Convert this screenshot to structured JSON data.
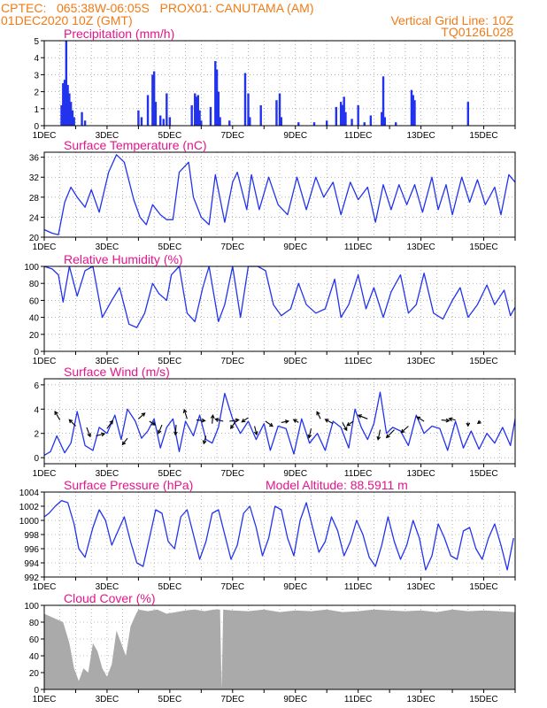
{
  "header": {
    "line1": "CPTEC:   065:38W-06:05S   PROX01: CANUTAMA (AM)",
    "line2": "01DEC2020 10Z (GMT)",
    "grid_note": "Vertical Grid Line: 10Z",
    "code": "TQ0126L028"
  },
  "colors": {
    "header": "#f07b16",
    "title": "#e6148c",
    "series": "#2233ee",
    "cloud": "#aaaaaa",
    "arrow": "#000000"
  },
  "chart_data": [
    {
      "type": "bar",
      "title": "Precipitation (mm/h)",
      "x_ticks": [
        "1DEC",
        "3DEC",
        "5DEC",
        "7DEC",
        "9DEC",
        "11DEC",
        "13DEC",
        "15DEC"
      ],
      "x_range_days": [
        1,
        16
      ],
      "ylim": [
        0,
        5
      ],
      "y_ticks": [
        0,
        1,
        2,
        3,
        4,
        5
      ],
      "grid": "dashed",
      "bars": [
        [
          1.55,
          1.2
        ],
        [
          1.6,
          2.5
        ],
        [
          1.65,
          2.7
        ],
        [
          1.7,
          5.0
        ],
        [
          1.75,
          2.4
        ],
        [
          1.8,
          1.9
        ],
        [
          1.85,
          1.4
        ],
        [
          1.9,
          0.9
        ],
        [
          1.95,
          0.5
        ],
        [
          2.2,
          0.8
        ],
        [
          2.3,
          0.3
        ],
        [
          4.0,
          0.9
        ],
        [
          4.1,
          0.5
        ],
        [
          4.3,
          1.8
        ],
        [
          4.45,
          3.0
        ],
        [
          4.5,
          3.2
        ],
        [
          4.55,
          1.4
        ],
        [
          4.7,
          0.6
        ],
        [
          4.8,
          0.4
        ],
        [
          4.9,
          1.9
        ],
        [
          5.0,
          0.5
        ],
        [
          5.7,
          1.2
        ],
        [
          5.8,
          1.9
        ],
        [
          5.85,
          1.7
        ],
        [
          5.9,
          1.8
        ],
        [
          5.95,
          0.9
        ],
        [
          6.0,
          0.3
        ],
        [
          6.3,
          1.1
        ],
        [
          6.45,
          3.8
        ],
        [
          6.5,
          3.3
        ],
        [
          6.55,
          2.0
        ],
        [
          6.6,
          0.5
        ],
        [
          6.9,
          0.3
        ],
        [
          7.4,
          3.1
        ],
        [
          7.5,
          1.9
        ],
        [
          7.55,
          0.5
        ],
        [
          7.9,
          1.2
        ],
        [
          8.4,
          1.5
        ],
        [
          8.5,
          1.9
        ],
        [
          8.55,
          0.5
        ],
        [
          9.1,
          0.2
        ],
        [
          9.6,
          0.2
        ],
        [
          10.0,
          0.3
        ],
        [
          10.3,
          1.1
        ],
        [
          10.45,
          1.4
        ],
        [
          10.5,
          1.2
        ],
        [
          10.55,
          1.7
        ],
        [
          10.6,
          0.8
        ],
        [
          10.8,
          0.4
        ],
        [
          11.0,
          1.2
        ],
        [
          11.2,
          0.2
        ],
        [
          11.4,
          0.6
        ],
        [
          11.75,
          0.8
        ],
        [
          11.8,
          2.9
        ],
        [
          11.85,
          0.5
        ],
        [
          12.2,
          0.2
        ],
        [
          12.7,
          2.1
        ],
        [
          12.75,
          1.8
        ],
        [
          12.8,
          1.5
        ],
        [
          14.5,
          1.4
        ]
      ]
    },
    {
      "type": "line",
      "title": "Surface Temperature (nC)",
      "x_ticks": [
        "1DEC",
        "3DEC",
        "5DEC",
        "7DEC",
        "9DEC",
        "11DEC",
        "13DEC",
        "15DEC"
      ],
      "x_range_days": [
        1,
        16
      ],
      "ylim": [
        20,
        37
      ],
      "y_ticks": [
        20,
        24,
        28,
        32,
        36
      ],
      "grid": "dashed",
      "x": [
        1.0,
        1.25,
        1.45,
        1.65,
        1.85,
        2.05,
        2.3,
        2.5,
        2.75,
        3.05,
        3.3,
        3.55,
        3.85,
        4.05,
        4.25,
        4.45,
        4.7,
        4.9,
        5.1,
        5.3,
        5.6,
        5.75,
        6.0,
        6.25,
        6.45,
        6.75,
        7.0,
        7.15,
        7.45,
        7.6,
        7.85,
        8.15,
        8.45,
        8.75,
        9.05,
        9.35,
        9.65,
        9.9,
        10.2,
        10.45,
        10.75,
        11.0,
        11.3,
        11.55,
        11.8,
        12.05,
        12.3,
        12.55,
        12.8,
        13.05,
        13.35,
        13.55,
        13.8,
        14.0,
        14.3,
        14.55,
        14.8,
        15.05,
        15.35,
        15.55,
        15.8,
        16.0
      ],
      "values": [
        21.5,
        20.8,
        20.5,
        27,
        30,
        28,
        26,
        29.5,
        25,
        33,
        36.5,
        35,
        27.5,
        24,
        22.5,
        26.5,
        24.5,
        23.5,
        23.5,
        33,
        35,
        28,
        24,
        22.5,
        32.5,
        23,
        31,
        33,
        25.5,
        32.5,
        25.5,
        32,
        26.5,
        24.5,
        32,
        25.5,
        32,
        28,
        31,
        24.5,
        31,
        27.5,
        30,
        23,
        30.5,
        25.5,
        30.5,
        26.5,
        30.5,
        25,
        32,
        25.5,
        30.5,
        24.5,
        32,
        27,
        31.5,
        26.5,
        30,
        24.5,
        32.5,
        31
      ]
    },
    {
      "type": "line",
      "title": "Relative Humidity (%)",
      "x_ticks": [
        "1DEC",
        "3DEC",
        "5DEC",
        "7DEC",
        "9DEC",
        "11DEC",
        "13DEC",
        "15DEC"
      ],
      "x_range_days": [
        1,
        16
      ],
      "ylim": [
        0,
        100
      ],
      "y_ticks": [
        0,
        20,
        40,
        60,
        80,
        100
      ],
      "grid": "dashed",
      "x": [
        1.0,
        1.25,
        1.45,
        1.6,
        1.8,
        2.05,
        2.3,
        2.55,
        2.85,
        3.15,
        3.4,
        3.7,
        3.95,
        4.2,
        4.45,
        4.65,
        4.9,
        5.05,
        5.3,
        5.55,
        5.8,
        6.05,
        6.25,
        6.55,
        6.75,
        7.0,
        7.25,
        7.5,
        7.8,
        8.05,
        8.3,
        8.55,
        8.85,
        9.1,
        9.35,
        9.65,
        9.95,
        10.25,
        10.45,
        10.7,
        11.0,
        11.25,
        11.5,
        11.8,
        12.05,
        12.35,
        12.6,
        12.85,
        13.1,
        13.4,
        13.7,
        14.0,
        14.25,
        14.5,
        14.8,
        15.1,
        15.35,
        15.65,
        15.85,
        16.0
      ],
      "values": [
        100,
        97,
        90,
        58,
        100,
        65,
        95,
        100,
        40,
        60,
        75,
        32,
        28,
        45,
        80,
        68,
        60,
        90,
        100,
        45,
        35,
        75,
        100,
        35,
        55,
        100,
        40,
        100,
        100,
        95,
        55,
        42,
        50,
        80,
        55,
        45,
        50,
        85,
        40,
        55,
        90,
        50,
        75,
        40,
        70,
        90,
        45,
        55,
        92,
        45,
        38,
        60,
        75,
        40,
        55,
        78,
        55,
        72,
        42,
        52
      ]
    },
    {
      "type": "line",
      "title": "Surface Wind (m/s)",
      "x_ticks": [
        "1DEC",
        "3DEC",
        "5DEC",
        "7DEC",
        "9DEC",
        "11DEC",
        "13DEC",
        "15DEC"
      ],
      "x_range_days": [
        1,
        16
      ],
      "ylim": [
        -0.5,
        6.5
      ],
      "y_ticks": [
        0,
        2,
        4,
        6
      ],
      "grid": "dashed",
      "x": [
        1.0,
        1.2,
        1.4,
        1.65,
        1.85,
        2.05,
        2.3,
        2.55,
        2.75,
        3.0,
        3.25,
        3.45,
        3.65,
        3.9,
        4.1,
        4.3,
        4.5,
        4.7,
        4.9,
        5.1,
        5.3,
        5.5,
        5.75,
        5.95,
        6.15,
        6.35,
        6.55,
        6.75,
        7.0,
        7.25,
        7.5,
        7.75,
        8.0,
        8.2,
        8.45,
        8.7,
        8.95,
        9.2,
        9.45,
        9.7,
        9.95,
        10.2,
        10.45,
        10.7,
        10.9,
        11.1,
        11.3,
        11.5,
        11.7,
        11.9,
        12.1,
        12.35,
        12.6,
        12.85,
        13.1,
        13.35,
        13.6,
        13.85,
        14.1,
        14.35,
        14.6,
        14.85,
        15.1,
        15.35,
        15.6,
        15.85,
        16.0
      ],
      "values": [
        0.2,
        0.5,
        1.8,
        0.4,
        1.2,
        3.8,
        1.0,
        0.6,
        2.5,
        2.0,
        3.5,
        1.5,
        4.0,
        3.0,
        1.6,
        2.2,
        3.2,
        0.8,
        2.5,
        3.2,
        0.5,
        3.0,
        1.8,
        3.5,
        1.5,
        1.2,
        2.5,
        5.3,
        3.2,
        2.0,
        3.0,
        1.5,
        2.8,
        0.6,
        2.6,
        2.4,
        0.3,
        3.2,
        1.2,
        2.0,
        0.6,
        3.0,
        2.5,
        0.8,
        4.0,
        2.5,
        1.5,
        2.8,
        5.4,
        2.0,
        2.5,
        2.2,
        1.0,
        3.5,
        2.0,
        2.6,
        2.4,
        0.6,
        3.0,
        0.8,
        2.2,
        0.7,
        2.0,
        1.2,
        2.5,
        1.0,
        3.2
      ],
      "arrows": [
        [
          1.5,
          3.1,
          -0.7,
          1.2
        ],
        [
          2.0,
          2.6,
          -0.9,
          0.9
        ],
        [
          2.35,
          2.5,
          0.5,
          -1.3
        ],
        [
          2.65,
          1.8,
          1.2,
          0.3
        ],
        [
          3.0,
          2.4,
          0.8,
          1.1
        ],
        [
          3.65,
          1.6,
          -0.7,
          -0.9
        ],
        [
          4.0,
          3.2,
          0.9,
          0.8
        ],
        [
          4.35,
          3.0,
          0.8,
          -0.5
        ],
        [
          4.75,
          2.7,
          -0.5,
          -1.2
        ],
        [
          5.2,
          2.7,
          -0.1,
          -1.4
        ],
        [
          5.55,
          3.2,
          -0.4,
          1.3
        ],
        [
          5.85,
          3.1,
          1.2,
          -0.1
        ],
        [
          6.15,
          1.8,
          -0.3,
          -1.1
        ],
        [
          6.35,
          2.8,
          0.1,
          1.2
        ],
        [
          6.7,
          3.0,
          -1.1,
          0.3
        ],
        [
          6.9,
          3.0,
          1.3,
          0.2
        ],
        [
          7.1,
          3.0,
          -0.7,
          -1.0
        ],
        [
          7.5,
          3.3,
          -0.9,
          -0.6
        ],
        [
          7.7,
          2.6,
          0.3,
          -1.2
        ],
        [
          8.05,
          3.0,
          1.0,
          -0.7
        ],
        [
          8.55,
          2.9,
          1.0,
          0.2
        ],
        [
          9.1,
          2.9,
          -0.7,
          0.4
        ],
        [
          9.5,
          2.4,
          -0.3,
          -1.3
        ],
        [
          9.8,
          3.2,
          -0.5,
          1.0
        ],
        [
          10.2,
          2.8,
          -1.1,
          0.6
        ],
        [
          10.5,
          2.9,
          0.6,
          -1.1
        ],
        [
          10.85,
          3.0,
          -0.9,
          -0.6
        ],
        [
          11.3,
          3.2,
          -1.3,
          0.5
        ],
        [
          11.7,
          2.3,
          -0.3,
          -1.4
        ],
        [
          12.15,
          2.3,
          -1.1,
          -1.1
        ],
        [
          12.6,
          2.6,
          -1.0,
          -0.9
        ],
        [
          13.1,
          3.0,
          -1.0,
          0.6
        ],
        [
          13.65,
          3.1,
          1.1,
          -0.1
        ],
        [
          14.1,
          3.1,
          -0.9,
          0.2
        ],
        [
          14.5,
          2.9,
          0.0,
          -0.5
        ],
        [
          14.9,
          3.0,
          -0.4,
          -0.3
        ]
      ]
    },
    {
      "type": "line",
      "title": "Surface Pressure (hPa)",
      "annotation": "Model Altitude: 88.5911 m",
      "x_ticks": [
        "1DEC",
        "3DEC",
        "5DEC",
        "7DEC",
        "9DEC",
        "11DEC",
        "13DEC",
        "15DEC"
      ],
      "x_range_days": [
        1,
        16
      ],
      "ylim": [
        992,
        1004
      ],
      "y_ticks": [
        992,
        994,
        996,
        998,
        1000,
        1002,
        1004
      ],
      "grid": "dashed",
      "x": [
        1.0,
        1.15,
        1.35,
        1.55,
        1.75,
        1.95,
        2.1,
        2.3,
        2.55,
        2.75,
        2.95,
        3.15,
        3.35,
        3.55,
        3.75,
        3.95,
        4.15,
        4.35,
        4.55,
        4.75,
        4.95,
        5.15,
        5.35,
        5.55,
        5.75,
        5.95,
        6.15,
        6.35,
        6.55,
        6.75,
        6.95,
        7.15,
        7.35,
        7.55,
        7.75,
        7.95,
        8.15,
        8.35,
        8.55,
        8.75,
        8.95,
        9.15,
        9.35,
        9.55,
        9.75,
        9.95,
        10.15,
        10.35,
        10.55,
        10.75,
        10.95,
        11.15,
        11.35,
        11.55,
        11.75,
        11.95,
        12.15,
        12.35,
        12.55,
        12.75,
        12.95,
        13.15,
        13.35,
        13.55,
        13.75,
        13.95,
        14.15,
        14.35,
        14.55,
        14.75,
        14.95,
        15.15,
        15.35,
        15.55,
        15.75,
        15.95
      ],
      "values": [
        1000.5,
        1001.0,
        1002.0,
        1002.8,
        1002.5,
        999.5,
        996.0,
        994.8,
        999.0,
        1001.5,
        1000.0,
        996.5,
        998.5,
        1000.5,
        997.0,
        994.0,
        993.5,
        997.5,
        1001.5,
        1001.0,
        997.0,
        996.0,
        1000.5,
        1001.5,
        998.0,
        994.5,
        997.0,
        1001.0,
        1001.5,
        998.0,
        994.5,
        996.5,
        1001.0,
        1002.0,
        999.0,
        995.0,
        997.5,
        1002.0,
        1001.5,
        997.5,
        995.0,
        1000.0,
        1002.5,
        999.0,
        995.5,
        997.0,
        1000.5,
        998.5,
        995.0,
        997.0,
        1000.0,
        998.0,
        994.8,
        993.5,
        996.5,
        1000.5,
        997.0,
        994.5,
        996.5,
        1000.0,
        997.5,
        993.0,
        995.0,
        999.5,
        997.5,
        995.0,
        994.5,
        998.5,
        999.0,
        996.0,
        994.5,
        997.5,
        999.5,
        996.5,
        993.0,
        997.5
      ]
    },
    {
      "type": "area",
      "title": "Cloud Cover (%)",
      "x_ticks": [
        "1DEC",
        "3DEC",
        "5DEC",
        "7DEC",
        "9DEC",
        "11DEC",
        "13DEC",
        "15DEC"
      ],
      "x_range_days": [
        1,
        16
      ],
      "ylim": [
        0,
        100
      ],
      "y_ticks": [
        0,
        20,
        40,
        60,
        80,
        100
      ],
      "grid": "dashed",
      "x": [
        1.0,
        1.3,
        1.6,
        1.8,
        1.95,
        2.1,
        2.25,
        2.4,
        2.55,
        2.7,
        2.85,
        3.0,
        3.15,
        3.3,
        3.45,
        3.6,
        3.75,
        3.9,
        4.0,
        4.3,
        4.6,
        4.9,
        5.2,
        5.5,
        5.8,
        6.1,
        6.4,
        6.6,
        6.65,
        6.7,
        7.0,
        7.5,
        8.0,
        8.5,
        9.0,
        9.5,
        10.0,
        10.5,
        11.0,
        11.5,
        12.0,
        12.5,
        13.0,
        13.5,
        14.0,
        14.5,
        15.0,
        15.5,
        16.0
      ],
      "values": [
        90,
        85,
        80,
        55,
        25,
        10,
        25,
        20,
        55,
        45,
        25,
        15,
        30,
        70,
        55,
        40,
        75,
        88,
        95,
        93,
        95,
        90,
        92,
        94,
        95,
        93,
        95,
        95,
        0,
        95,
        94,
        93,
        95,
        92,
        94,
        93,
        95,
        92,
        93,
        95,
        94,
        93,
        94,
        92,
        95,
        93,
        94,
        93,
        92
      ]
    }
  ]
}
